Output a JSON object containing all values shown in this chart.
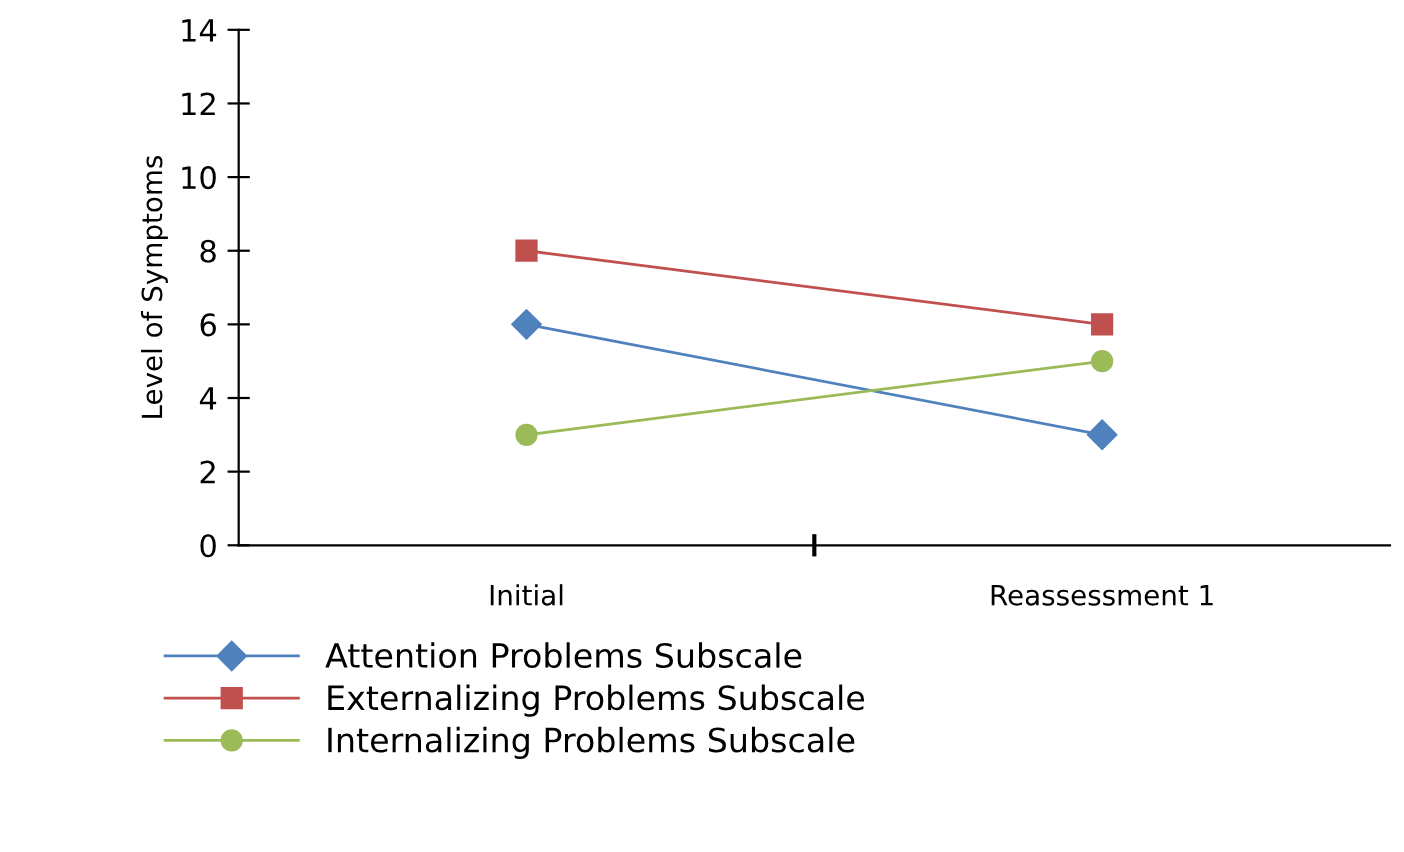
{
  "chart_data": {
    "type": "line",
    "ylabel": "Level of Symptoms",
    "categories": [
      "Initial",
      "Reassessment 1"
    ],
    "series": [
      {
        "name": "Attention Problems Subscale",
        "color": "#4f81bd",
        "values": [
          6,
          3
        ],
        "marker": "diamond"
      },
      {
        "name": "Externalizing Problems Subscale",
        "color": "#c0504d",
        "values": [
          8,
          6
        ],
        "marker": "square"
      },
      {
        "name": "Internalizing Problems Subscale",
        "color": "#9bbb59",
        "values": [
          3,
          5
        ],
        "marker": "circle"
      }
    ],
    "ylim": [
      0,
      14
    ],
    "yticks": [
      0,
      2,
      4,
      6,
      8,
      10,
      12,
      14
    ],
    "grid": false,
    "legend": "bottom",
    "line_style": "solid"
  }
}
